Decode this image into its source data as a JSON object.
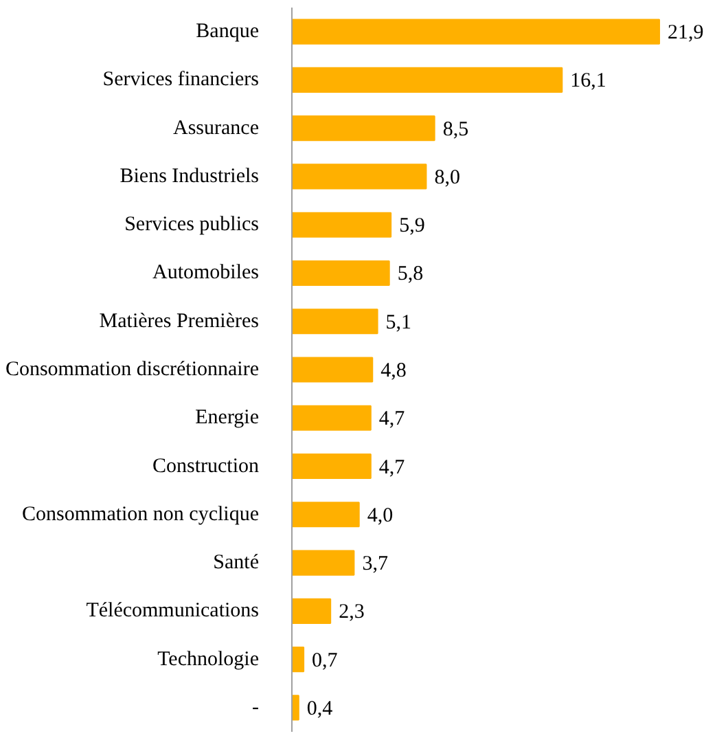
{
  "chart_data": {
    "type": "bar",
    "orientation": "horizontal",
    "categories": [
      "Banque",
      "Services financiers",
      "Assurance",
      "Biens Industriels",
      "Services publics",
      "Automobiles",
      "Matières Premières",
      "Consommation discrétionnaire",
      "Energie",
      "Construction",
      "Consommation non cyclique",
      "Santé",
      "Télécommunications",
      "Technologie",
      "-"
    ],
    "values": [
      21.9,
      16.1,
      8.5,
      8.0,
      5.9,
      5.8,
      5.1,
      4.8,
      4.7,
      4.7,
      4.0,
      3.7,
      2.3,
      0.7,
      0.4
    ],
    "value_labels": [
      "21,9",
      "16,1",
      "8,5",
      "8,0",
      "5,9",
      "5,8",
      "5,1",
      "4,8",
      "4,7",
      "4,7",
      "4,0",
      "3,7",
      "2,3",
      "0,7",
      "0,4"
    ],
    "color": "#ffb000"
  }
}
